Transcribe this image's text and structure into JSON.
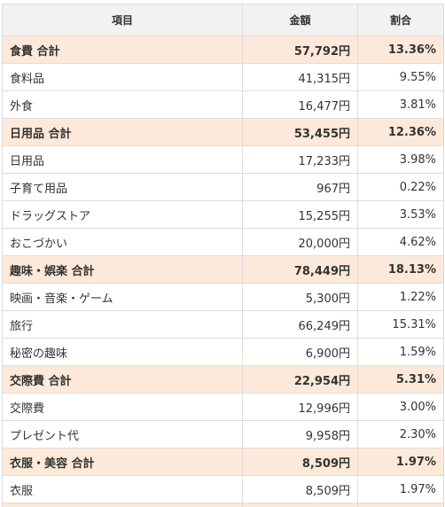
{
  "table": {
    "headers": [
      "項目",
      "金額",
      "割合"
    ],
    "rows": [
      {
        "type": "subtotal",
        "item": "食費 合計",
        "amount": "57,792円",
        "ratio": "13.36%"
      },
      {
        "type": "item",
        "item": "食料品",
        "amount": "41,315円",
        "ratio": "9.55%"
      },
      {
        "type": "item",
        "item": "外食",
        "amount": "16,477円",
        "ratio": "3.81%"
      },
      {
        "type": "subtotal",
        "item": "日用品 合計",
        "amount": "53,455円",
        "ratio": "12.36%"
      },
      {
        "type": "item",
        "item": "日用品",
        "amount": "17,233円",
        "ratio": "3.98%"
      },
      {
        "type": "item",
        "item": "子育て用品",
        "amount": "967円",
        "ratio": "0.22%"
      },
      {
        "type": "item",
        "item": "ドラッグストア",
        "amount": "15,255円",
        "ratio": "3.53%"
      },
      {
        "type": "item",
        "item": "おこづかい",
        "amount": "20,000円",
        "ratio": "4.62%"
      },
      {
        "type": "subtotal",
        "item": "趣味・娯楽 合計",
        "amount": "78,449円",
        "ratio": "18.13%"
      },
      {
        "type": "item",
        "item": "映画・音楽・ゲーム",
        "amount": "5,300円",
        "ratio": "1.22%"
      },
      {
        "type": "item",
        "item": "旅行",
        "amount": "66,249円",
        "ratio": "15.31%"
      },
      {
        "type": "item",
        "item": "秘密の趣味",
        "amount": "6,900円",
        "ratio": "1.59%"
      },
      {
        "type": "subtotal",
        "item": "交際費 合計",
        "amount": "22,954円",
        "ratio": "5.31%"
      },
      {
        "type": "item",
        "item": "交際費",
        "amount": "12,996円",
        "ratio": "3.00%"
      },
      {
        "type": "item",
        "item": "プレゼント代",
        "amount": "9,958円",
        "ratio": "2.30%"
      },
      {
        "type": "subtotal",
        "item": "衣服・美容 合計",
        "amount": "8,509円",
        "ratio": "1.97%"
      },
      {
        "type": "item",
        "item": "衣服",
        "amount": "8,509円",
        "ratio": "1.97%"
      }
    ]
  },
  "colors": {
    "subtotal_bg": "#fde9d9",
    "header_bg": "#f2f2f2",
    "border": "#dddddd"
  }
}
